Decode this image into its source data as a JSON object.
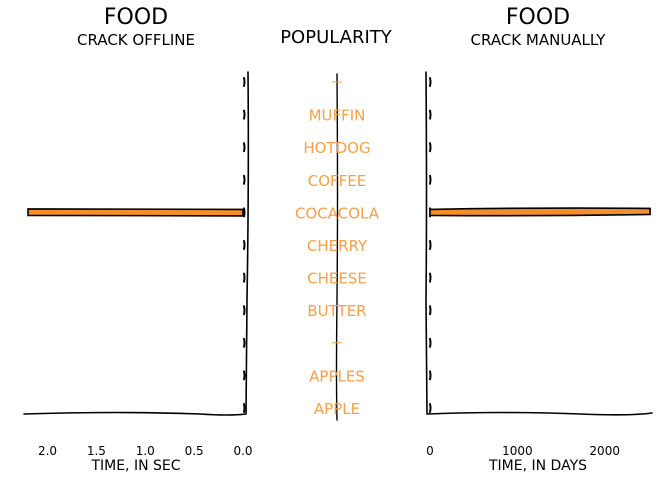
{
  "left_panel": {
    "title": "FOOD",
    "subtitle": "CRACK OFFLINE",
    "xlabel": "TIME, IN SEC"
  },
  "center_panel": {
    "title": "POPULARITY"
  },
  "right_panel": {
    "title": "FOOD",
    "subtitle": "CRACK MANUALLY",
    "xlabel": "TIME, IN DAYS"
  },
  "colors": {
    "bar": "#f28e2b",
    "label": "#f5a04a",
    "axis": "#000000"
  },
  "chart_data": [
    {
      "type": "bar",
      "orientation": "horizontal",
      "title": "FOOD",
      "subtitle": "CRACK OFFLINE",
      "xlabel": "TIME, IN SEC",
      "x_reversed": true,
      "xlim": [
        0,
        2.2
      ],
      "xticks": [
        "2.0",
        "1.5",
        "1.0",
        "0.5",
        "0.0"
      ],
      "categories": [
        "",
        "MUFFIN",
        "HOTDOG",
        "COFFEE",
        "COCACOLA",
        "CHERRY",
        "CHEESE",
        "BUTTER",
        "",
        "APPLES",
        "APPLE"
      ],
      "values": [
        0,
        0,
        0,
        0,
        2.2,
        0,
        0,
        0,
        0,
        0,
        0
      ]
    },
    {
      "type": "bar",
      "orientation": "horizontal",
      "title": "FOOD",
      "subtitle": "CRACK MANUALLY",
      "xlabel": "TIME, IN DAYS",
      "xlim": [
        -30,
        2500
      ],
      "xticks": [
        "0",
        "1000",
        "2000"
      ],
      "categories": [
        "",
        "MUFFIN",
        "HOTDOG",
        "COFFEE",
        "COCACOLA",
        "CHERRY",
        "CHEESE",
        "BUTTER",
        "",
        "APPLES",
        "APPLE"
      ],
      "values": [
        0,
        0,
        0,
        0,
        2520,
        0,
        0,
        0,
        0,
        0,
        0
      ]
    }
  ]
}
